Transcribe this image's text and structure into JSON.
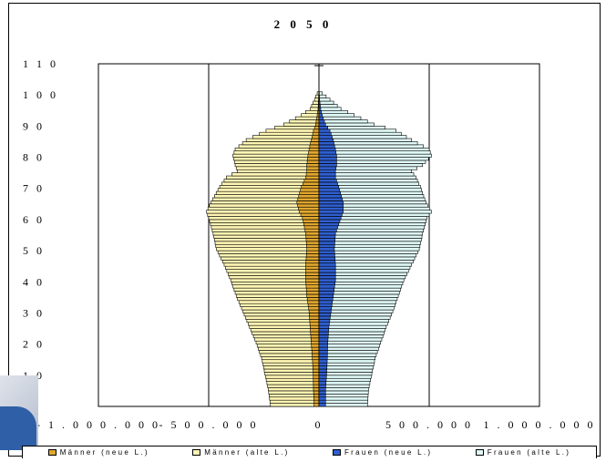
{
  "chart_data": {
    "type": "bar",
    "orientation": "horizontal-population-pyramid",
    "title": "2 0 5 0",
    "xlabel": "",
    "ylabel": "",
    "xlim": [
      -1000000,
      1000000
    ],
    "ylim": [
      0,
      110
    ],
    "xgrid_values": [
      -1000000,
      -500000,
      0,
      500000,
      1000000
    ],
    "x_ticks": [
      "- 1 . 0 0 0 . 0 0 0",
      "- 5 0 0 . 0 0 0",
      "0",
      "5 0 0 . 0 0 0",
      "1 . 0 0 0 . 0 0 0"
    ],
    "y_ticks": [
      "0",
      "1 0",
      "2 0",
      "3 0",
      "4 0",
      "5 0",
      "6 0",
      "7 0",
      "8 0",
      "9 0",
      "1 0 0",
      "1 1 0"
    ],
    "grid": "vertical",
    "legend_position": "bottom",
    "colors": {
      "maenner_neu": "#e2a72e",
      "maenner_alt": "#fff6b4",
      "frauen_neu": "#2f5fd0",
      "frauen_alt": "#dff8f6"
    },
    "series": [
      {
        "name": "Männer (neue L.)",
        "side": "left",
        "color": "#e2a72e"
      },
      {
        "name": "Männer (alte L.)",
        "side": "left",
        "color": "#fff6b4"
      },
      {
        "name": "Frauen (neue L.)",
        "side": "right",
        "color": "#2f5fd0"
      },
      {
        "name": "Frauen (alte L.)",
        "side": "right",
        "color": "#dff8f6"
      }
    ],
    "age_keypoints": [
      0,
      5,
      10,
      15,
      20,
      25,
      30,
      35,
      40,
      45,
      50,
      55,
      60,
      62,
      65,
      70,
      73,
      75,
      77,
      80,
      82,
      85,
      88,
      90,
      93,
      95,
      98,
      100,
      102
    ],
    "maenner_total_keypoints": [
      220000,
      230000,
      245000,
      260000,
      285000,
      315000,
      345000,
      375000,
      400000,
      430000,
      465000,
      480000,
      500000,
      510000,
      490000,
      450000,
      420000,
      370000,
      380000,
      390000,
      380000,
      330000,
      240000,
      160000,
      80000,
      40000,
      20000,
      8000,
      3000
    ],
    "maenner_neu_keypoints": [
      22000,
      25000,
      26000,
      30000,
      35000,
      40000,
      45000,
      55000,
      60000,
      60000,
      55000,
      60000,
      75000,
      90000,
      100000,
      80000,
      60000,
      55000,
      55000,
      50000,
      45000,
      35000,
      25000,
      15000,
      8000,
      4000,
      2000,
      1000,
      500
    ],
    "frauen_total_keypoints": [
      220000,
      225000,
      240000,
      255000,
      280000,
      305000,
      335000,
      360000,
      385000,
      420000,
      455000,
      470000,
      490000,
      510000,
      485000,
      460000,
      440000,
      420000,
      470000,
      510000,
      500000,
      420000,
      350000,
      250000,
      160000,
      100000,
      50000,
      15000,
      5000
    ],
    "frauen_neu_keypoints": [
      30000,
      30000,
      35000,
      38000,
      40000,
      45000,
      55000,
      65000,
      75000,
      75000,
      70000,
      75000,
      100000,
      110000,
      110000,
      90000,
      75000,
      75000,
      80000,
      80000,
      75000,
      65000,
      50000,
      30000,
      15000,
      8000,
      3000,
      1500,
      500
    ]
  }
}
